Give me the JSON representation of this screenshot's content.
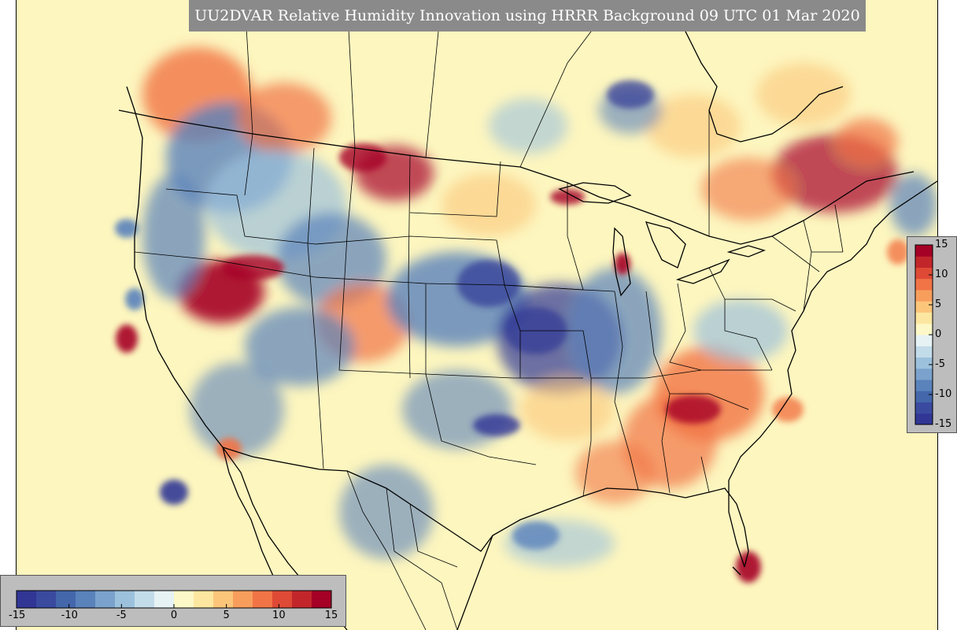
{
  "title": "UU2DVAR Relative Humidity Innovation using HRRR Background 09 UTC 01 Mar 2020",
  "colorbar": {
    "ticks": [
      "-15",
      "-10",
      "-5",
      "0",
      "5",
      "10",
      "15"
    ],
    "colors": [
      "#313695",
      "#3a4a9f",
      "#4467ab",
      "#5a82bb",
      "#7aa2cc",
      "#9cc1dc",
      "#c3dcea",
      "#e6f2f4",
      "#fdf8c8",
      "#fde7a0",
      "#fcc67a",
      "#f89e5c",
      "#f17446",
      "#de4a35",
      "#c2262b",
      "#a50026"
    ]
  },
  "map_colors": {
    "background": "#fdf6bf",
    "dry_strong": "#313695",
    "dry_mid": "#5a82bb",
    "dry_light": "#9cc1dc",
    "moist_light": "#fcc67a",
    "moist_mid": "#f17446",
    "moist_strong": "#a50026",
    "boundary": "#000000"
  }
}
